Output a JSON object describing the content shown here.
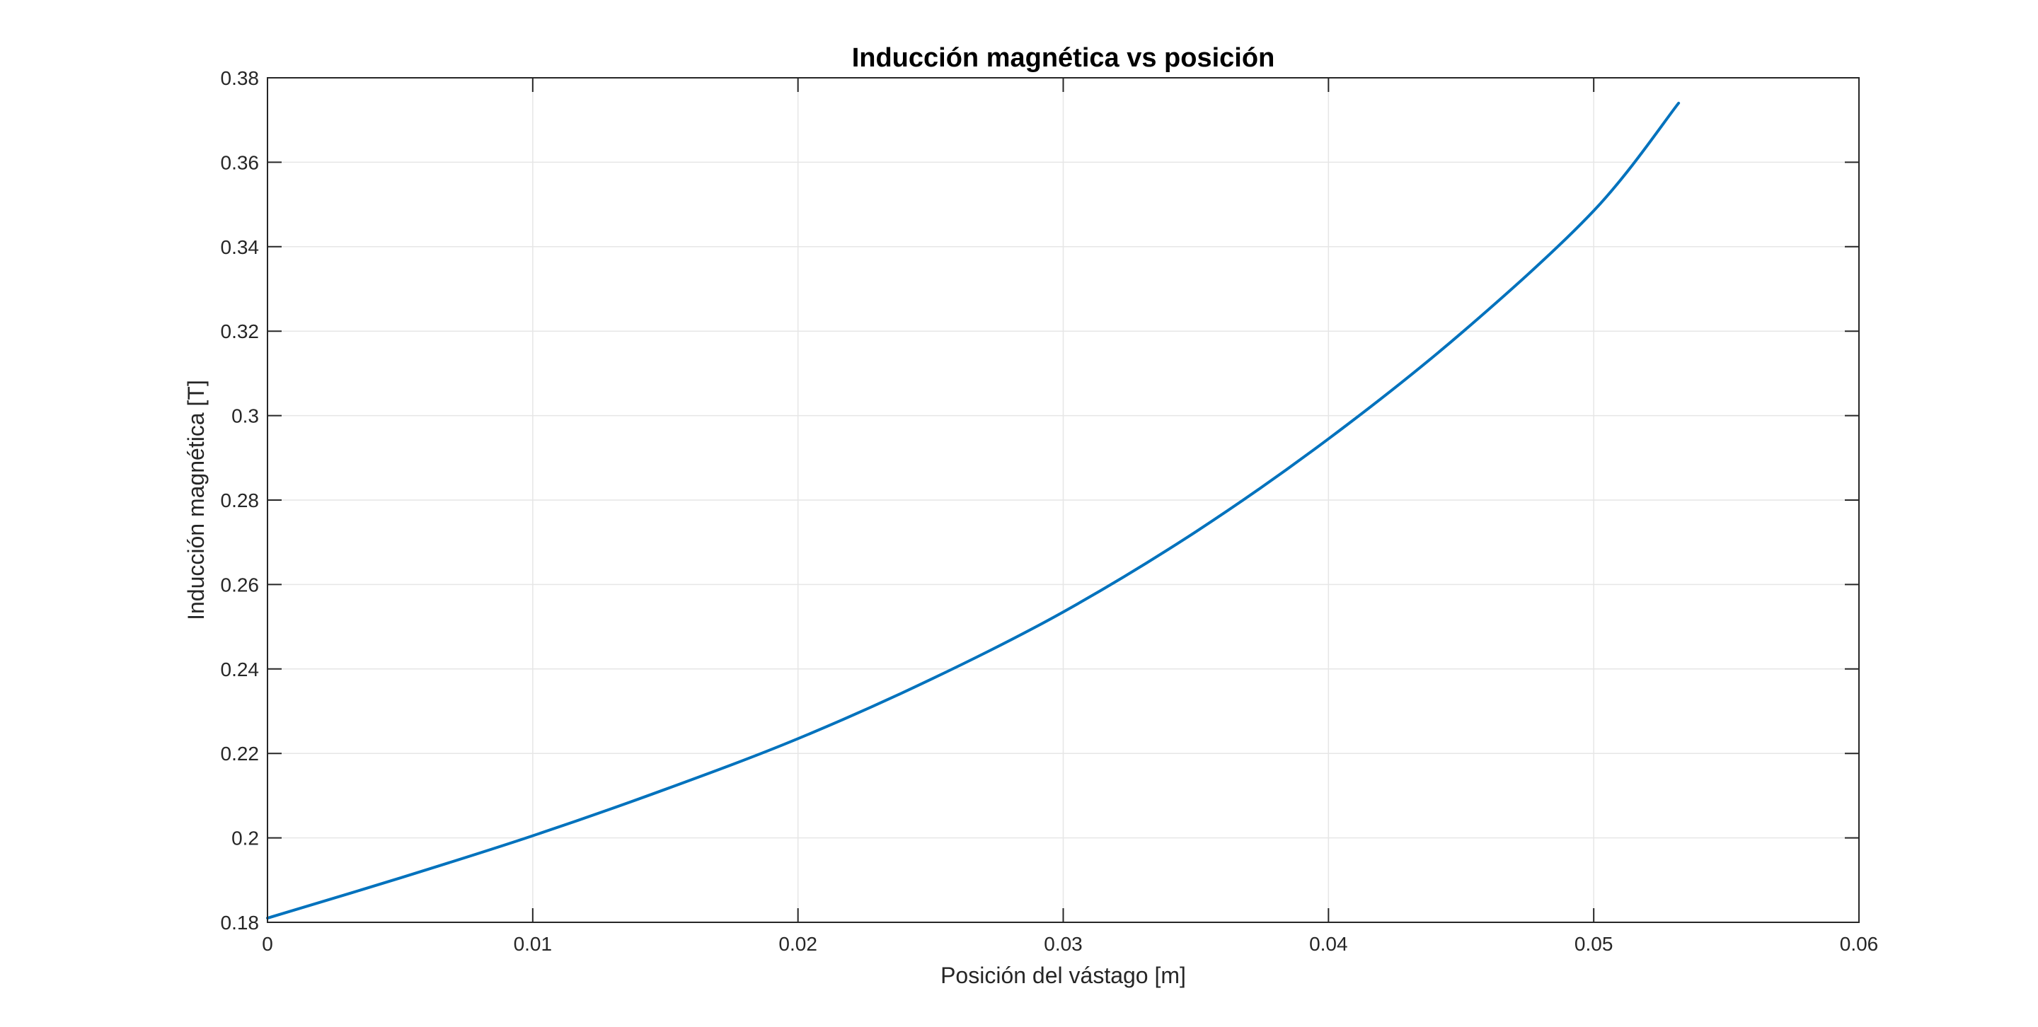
{
  "chart_data": {
    "type": "line",
    "title": "Inducción magnética vs posición",
    "xlabel": "Posición del vástago [m]",
    "ylabel": "Inducción magnética [T]",
    "xlim": [
      0,
      0.06
    ],
    "ylim": [
      0.18,
      0.38
    ],
    "xticks": [
      0,
      0.01,
      0.02,
      0.03,
      0.04,
      0.05,
      0.06
    ],
    "xtick_labels": [
      "0",
      "0.01",
      "0.02",
      "0.03",
      "0.04",
      "0.05",
      "0.06"
    ],
    "yticks": [
      0.18,
      0.2,
      0.22,
      0.24,
      0.26,
      0.28,
      0.3,
      0.32,
      0.34,
      0.36,
      0.38
    ],
    "ytick_labels": [
      "0.18",
      "0.2",
      "0.22",
      "0.24",
      "0.26",
      "0.28",
      "0.3",
      "0.32",
      "0.34",
      "0.36",
      "0.38"
    ],
    "grid": true,
    "series": [
      {
        "color": "#0072BD",
        "x": [
          0,
          0.005,
          0.01,
          0.015,
          0.02,
          0.025,
          0.03,
          0.035,
          0.04,
          0.045,
          0.05,
          0.0532
        ],
        "y": [
          0.181,
          0.1905,
          0.2005,
          0.2115,
          0.2235,
          0.2375,
          0.2535,
          0.2725,
          0.2945,
          0.3195,
          0.3485,
          0.374
        ]
      }
    ]
  }
}
